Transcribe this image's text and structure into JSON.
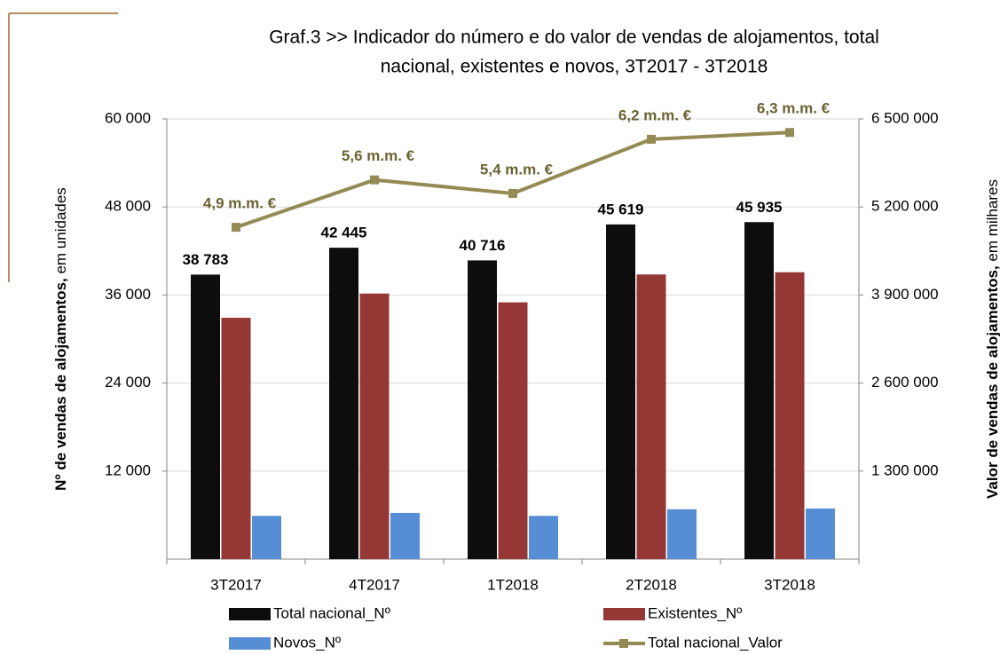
{
  "chart_data": {
    "type": "bar",
    "title": [
      "Graf.3   >>  Indicador do número e do valor de vendas de alojamentos, total",
      "nacional, existentes e novos, 3T2017 - 3T2018"
    ],
    "y_label": [
      "Nº  de vendas de alojamentos,",
      "em unidades"
    ],
    "y2_label": [
      "Valor de vendas de alojamentos,",
      "em milhares"
    ],
    "categories": [
      "3T2017",
      "4T2017",
      "1T2018",
      "2T2018",
      "3T2018"
    ],
    "ylim": [
      0,
      60000
    ],
    "yticks": [
      {
        "value": 12000,
        "label": "12 000"
      },
      {
        "value": 24000,
        "label": "24 000"
      },
      {
        "value": 36000,
        "label": "36 000"
      },
      {
        "value": 48000,
        "label": "48 000"
      },
      {
        "value": 60000,
        "label": "60 000"
      }
    ],
    "y2lim": [
      0,
      6500000
    ],
    "y2ticks": [
      {
        "value": 1300000,
        "label": "1 300 000"
      },
      {
        "value": 2600000,
        "label": "2 600 000"
      },
      {
        "value": 3900000,
        "label": "3 900 000"
      },
      {
        "value": 5200000,
        "label": "5 200 000"
      },
      {
        "value": 6500000,
        "label": "6 500 000"
      }
    ],
    "grid": true,
    "series": [
      {
        "name": "Total nacional_Nº",
        "type": "bar",
        "color": "#0d0d0d",
        "values": [
          38783,
          42445,
          40716,
          45619,
          45935
        ],
        "value_labels": [
          "38 783",
          "42 445",
          "40 716",
          "45 619",
          "45 935"
        ]
      },
      {
        "name": "Existentes_Nº",
        "type": "bar",
        "color": "#953735",
        "values": [
          32900,
          36200,
          35000,
          38800,
          39100
        ]
      },
      {
        "name": "Novos_Nº",
        "type": "bar",
        "color": "#558ed5",
        "values": [
          5900,
          6300,
          5900,
          6800,
          6900
        ]
      },
      {
        "name": "Total nacional_Valor",
        "type": "line",
        "axis": "y2",
        "color": "#948a54",
        "values": [
          4900000,
          5600000,
          5400000,
          6200000,
          6300000
        ],
        "value_labels": [
          "4,9 m.m. €",
          "5,6 m.m. €",
          "5,4 m.m. €",
          "6,2 m.m. €",
          "6,3 m.m. €"
        ]
      }
    ]
  }
}
